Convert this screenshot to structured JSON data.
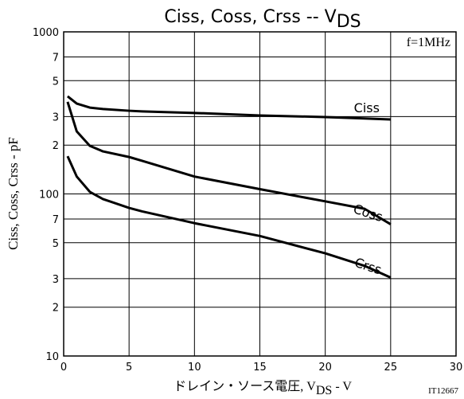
{
  "chart_data": {
    "type": "line",
    "title": {
      "text": "Ciss, Coss, Crss -- V",
      "subscript": "DS"
    },
    "x_label": {
      "text": "ドレイン・ソース電圧, V",
      "subscript": "DS",
      "suffix": " - V"
    },
    "y_label": "Ciss, Coss, Crss - pF",
    "annotation": "f=1MHz",
    "figure_code": "IT12667",
    "x": [
      0.3,
      1,
      2,
      3,
      5,
      6,
      10,
      15,
      20,
      23,
      25
    ],
    "series": [
      {
        "name": "Ciss",
        "color": "#000000",
        "values": [
          400,
          361,
          341,
          334,
          326,
          323,
          316,
          305,
          298,
          292,
          288
        ]
      },
      {
        "name": "Coss",
        "color": "#000000",
        "values": [
          370,
          243,
          198,
          183,
          169,
          160,
          128,
          107,
          90,
          81,
          65
        ]
      },
      {
        "name": "Crss",
        "color": "#000000",
        "values": [
          171,
          128,
          103,
          93,
          82,
          78,
          66,
          55,
          43,
          36,
          30.5
        ]
      }
    ],
    "xlim": [
      0,
      30
    ],
    "xticks": [
      0,
      5,
      10,
      15,
      20,
      25,
      30
    ],
    "ylim": [
      10,
      1000
    ],
    "log_y": true,
    "grid": true,
    "yticks": [
      10,
      {
        "value": 20,
        "label": "2"
      },
      {
        "value": 30,
        "label": "3"
      },
      {
        "value": 50,
        "label": "5"
      },
      {
        "value": 70,
        "label": "7"
      },
      100,
      {
        "value": 200,
        "label": "2"
      },
      {
        "value": 300,
        "label": "3"
      },
      {
        "value": 500,
        "label": "5"
      },
      {
        "value": 700,
        "label": "7"
      },
      1000
    ]
  }
}
